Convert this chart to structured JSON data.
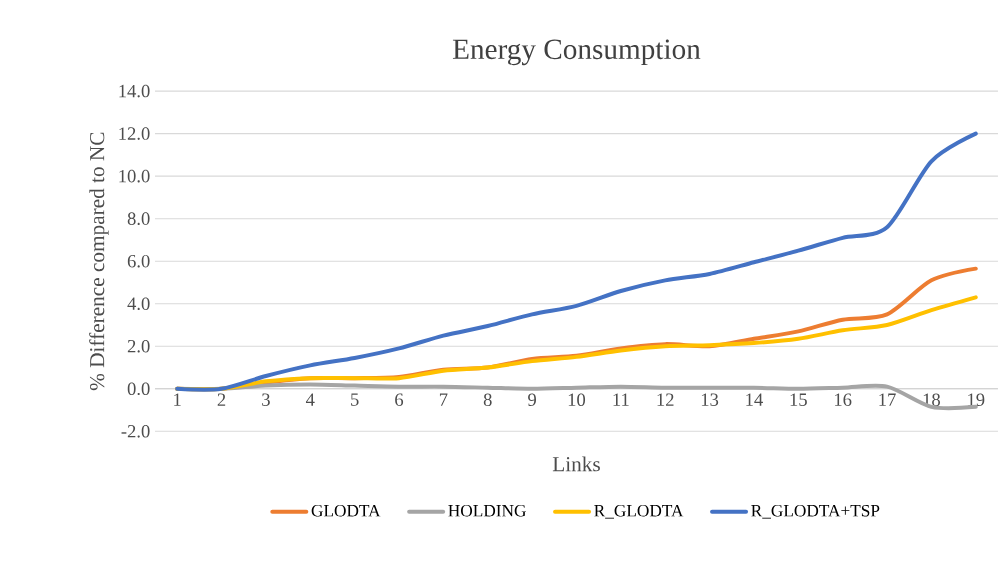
{
  "chart_data": {
    "type": "line",
    "title": "Energy  Consumption",
    "xlabel": "Links",
    "ylabel": "% Difference compared to NC",
    "categories": [
      "1",
      "2",
      "3",
      "4",
      "5",
      "6",
      "7",
      "8",
      "9",
      "10",
      "11",
      "12",
      "13",
      "14",
      "15",
      "16",
      "17",
      "18",
      "19"
    ],
    "series": [
      {
        "name": "GLODTA",
        "color": "#ed7d31",
        "values": [
          0,
          0,
          0.3,
          0.5,
          0.5,
          0.55,
          0.9,
          1.0,
          1.4,
          1.55,
          1.9,
          2.1,
          2.0,
          2.35,
          2.7,
          3.25,
          3.5,
          5.1,
          5.65
        ]
      },
      {
        "name": "HOLDING",
        "color": "#a5a5a5",
        "values": [
          0,
          0,
          0.15,
          0.2,
          0.15,
          0.1,
          0.1,
          0.05,
          0,
          0.05,
          0.1,
          0.05,
          0.05,
          0.05,
          0,
          0.05,
          0.1,
          -0.85,
          -0.85
        ]
      },
      {
        "name": "R_GLODTA",
        "color": "#ffc000",
        "values": [
          0,
          0,
          0.35,
          0.5,
          0.5,
          0.5,
          0.85,
          1.0,
          1.3,
          1.5,
          1.8,
          2.0,
          2.05,
          2.15,
          2.35,
          2.75,
          3.0,
          3.7,
          4.3
        ]
      },
      {
        "name": "R_GLODTA+TSP",
        "color": "#4472c4",
        "values": [
          0,
          0,
          0.6,
          1.1,
          1.45,
          1.9,
          2.5,
          2.95,
          3.5,
          3.9,
          4.6,
          5.1,
          5.4,
          5.95,
          6.5,
          7.1,
          7.6,
          10.7,
          12.0
        ]
      }
    ],
    "ylim": [
      -2,
      14
    ],
    "yticks": [
      {
        "value": -2,
        "label": "-2.0"
      },
      {
        "value": 0,
        "label": "0.0"
      },
      {
        "value": 2,
        "label": "2.0"
      },
      {
        "value": 4,
        "label": "4.0"
      },
      {
        "value": 6,
        "label": "6.0"
      },
      {
        "value": 8,
        "label": "8.0"
      },
      {
        "value": 10,
        "label": "10.0"
      },
      {
        "value": 12,
        "label": "12.0"
      },
      {
        "value": 14,
        "label": "14.0"
      }
    ],
    "grid": "y",
    "legend": "bottom",
    "marker": "none",
    "line_style": "solid"
  }
}
